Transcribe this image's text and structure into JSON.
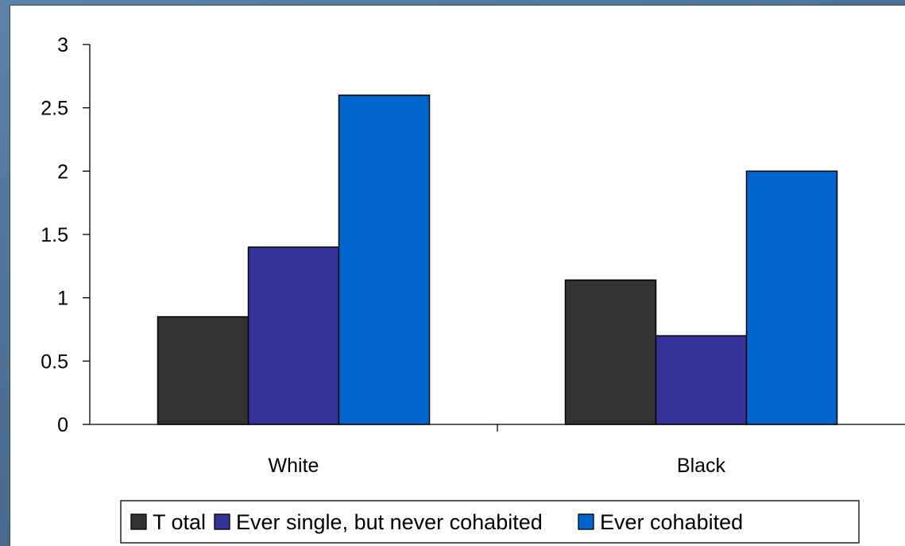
{
  "chart_data": {
    "type": "bar",
    "title": "",
    "xlabel": "",
    "ylabel": "",
    "categories": [
      "White",
      "Black"
    ],
    "series": [
      {
        "name": "T otal",
        "values": [
          0.85,
          1.14
        ],
        "color": "#333333"
      },
      {
        "name": "Ever single, but never cohabited",
        "values": [
          1.4,
          0.7
        ],
        "color": "#333399"
      },
      {
        "name": "Ever cohabited",
        "values": [
          2.6,
          2.0
        ],
        "color": "#0066cc"
      }
    ],
    "ylim": [
      0,
      3
    ],
    "yticks": [
      0,
      0.5,
      1,
      1.5,
      2,
      2.5,
      3
    ],
    "ytick_labels": [
      "0",
      "0.5",
      "1",
      "1.5",
      "2",
      "2.5",
      "3"
    ],
    "grid": false,
    "legend_position": "bottom"
  }
}
